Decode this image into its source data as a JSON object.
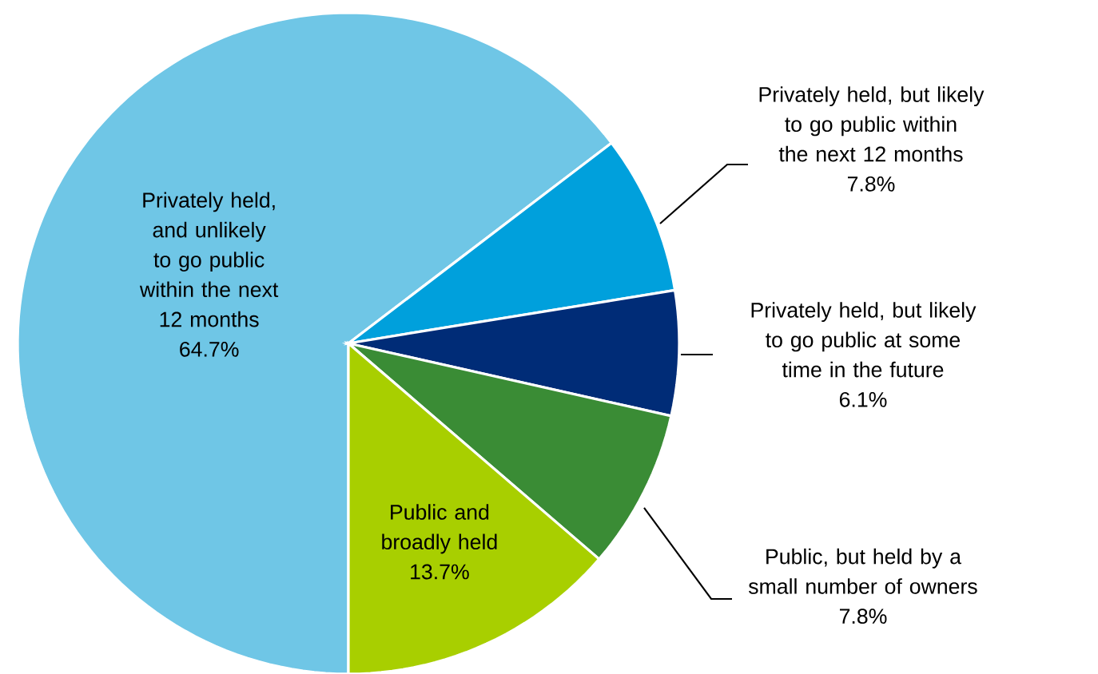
{
  "chart_data": {
    "type": "pie",
    "categories": [
      "Privately held, and unlikely to go public within the next 12 months",
      "Privately held, but likely to go public within the next 12 months",
      "Privately held, but likely to go public at some time in the future",
      "Public, but held by a small number of owners",
      "Public and broadly held"
    ],
    "values": [
      64.7,
      7.8,
      6.1,
      7.8,
      13.7
    ],
    "value_labels": [
      "64.7%",
      "7.8%",
      "6.1%",
      "7.8%",
      "13.7%"
    ],
    "colors": [
      "#6fc6e6",
      "#00a0dc",
      "#002c77",
      "#3a8c35",
      "#a8cf00"
    ]
  }
}
